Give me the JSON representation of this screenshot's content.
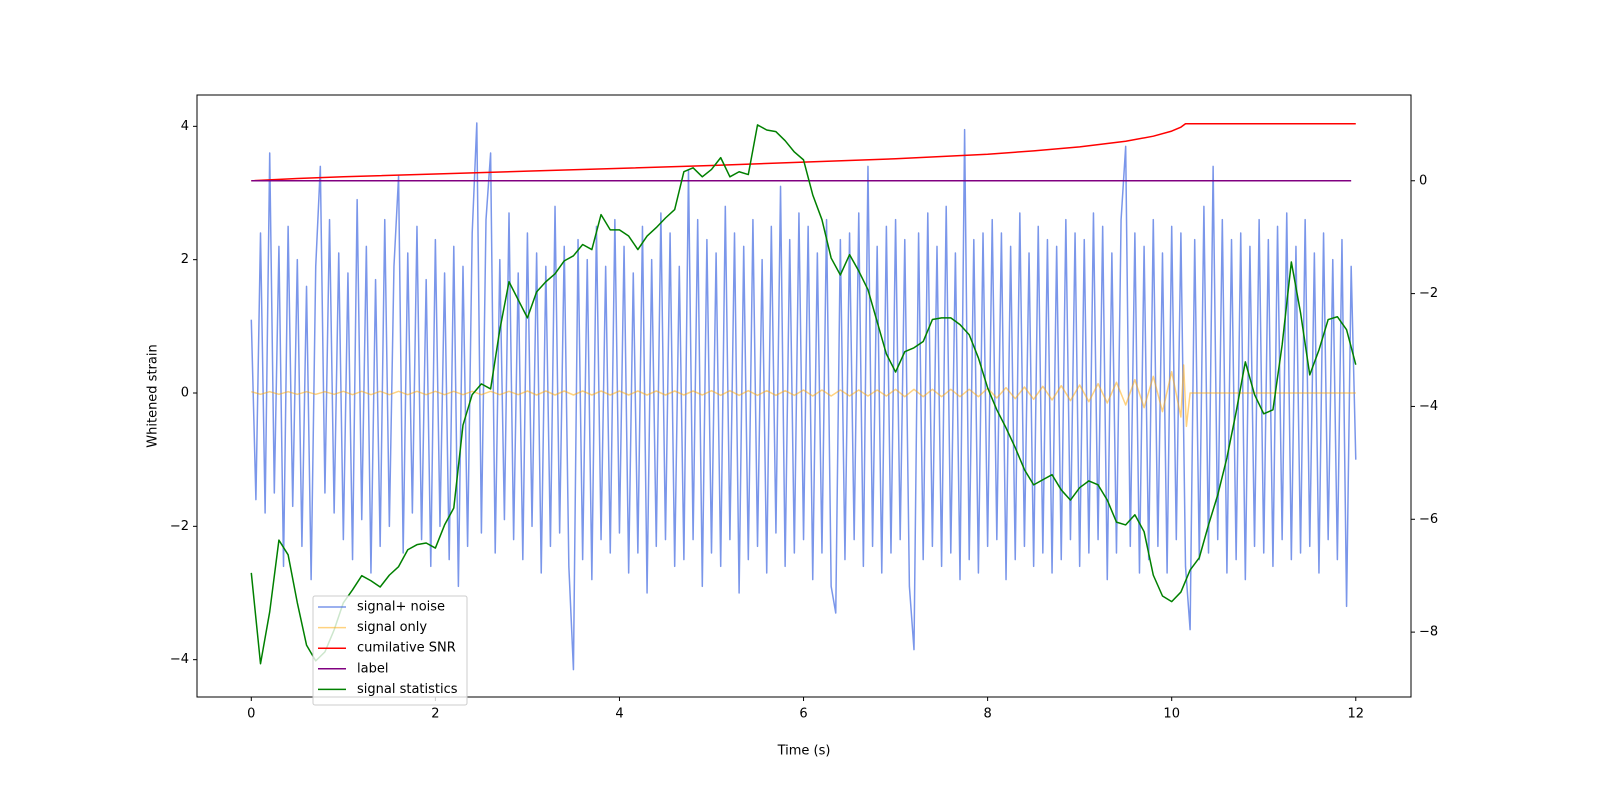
{
  "chart_data": {
    "type": "line",
    "xlabel": "Time (s)",
    "ylabel": "Whitened strain",
    "xlim": [
      -0.59,
      12.6
    ],
    "ylim": [
      -4.56,
      4.47
    ],
    "y2lim": [
      -9.15,
      1.52
    ],
    "xticks": [
      0,
      2,
      4,
      6,
      8,
      10,
      12
    ],
    "yticks": [
      {
        "value": -4,
        "label": "−4"
      },
      {
        "value": -2,
        "label": "−2"
      },
      0,
      2,
      4
    ],
    "y2ticks": [
      {
        "value": -8,
        "label": "−8"
      },
      {
        "value": -6,
        "label": "−6"
      },
      {
        "value": -4,
        "label": "−4"
      },
      {
        "value": -2,
        "label": "−2"
      },
      0
    ],
    "legend": "lower left",
    "series": [
      {
        "name": "signal+ noise",
        "color": "#4169e1",
        "alpha": 0.7,
        "x": [
          0,
          0.05,
          0.1,
          0.15,
          0.2,
          0.25,
          0.3,
          0.35,
          0.4,
          0.45,
          0.5,
          0.55,
          0.6,
          0.65,
          0.7,
          0.75,
          0.8,
          0.85,
          0.9,
          0.95,
          1,
          1.05,
          1.1,
          1.15,
          1.2,
          1.25,
          1.3,
          1.35,
          1.4,
          1.45,
          1.5,
          1.55,
          1.6,
          1.65,
          1.7,
          1.75,
          1.8,
          1.85,
          1.9,
          1.95,
          2,
          2.05,
          2.1,
          2.15,
          2.2,
          2.25,
          2.3,
          2.35,
          2.4,
          2.45,
          2.5,
          2.55,
          2.6,
          2.65,
          2.7,
          2.75,
          2.8,
          2.85,
          2.9,
          2.95,
          3,
          3.05,
          3.1,
          3.15,
          3.2,
          3.25,
          3.3,
          3.35,
          3.4,
          3.45,
          3.5,
          3.55,
          3.6,
          3.65,
          3.7,
          3.75,
          3.8,
          3.85,
          3.9,
          3.95,
          4,
          4.05,
          4.1,
          4.15,
          4.2,
          4.25,
          4.3,
          4.35,
          4.4,
          4.45,
          4.5,
          4.55,
          4.6,
          4.65,
          4.7,
          4.75,
          4.8,
          4.85,
          4.9,
          4.95,
          5,
          5.05,
          5.1,
          5.15,
          5.2,
          5.25,
          5.3,
          5.35,
          5.4,
          5.45,
          5.5,
          5.55,
          5.6,
          5.65,
          5.7,
          5.75,
          5.8,
          5.85,
          5.9,
          5.95,
          6,
          6.05,
          6.1,
          6.15,
          6.2,
          6.25,
          6.3,
          6.35,
          6.4,
          6.45,
          6.5,
          6.55,
          6.6,
          6.65,
          6.7,
          6.75,
          6.8,
          6.85,
          6.9,
          6.95,
          7,
          7.05,
          7.1,
          7.15,
          7.2,
          7.25,
          7.3,
          7.35,
          7.4,
          7.45,
          7.5,
          7.55,
          7.6,
          7.65,
          7.7,
          7.75,
          7.8,
          7.85,
          7.9,
          7.95,
          8,
          8.05,
          8.1,
          8.15,
          8.2,
          8.25,
          8.3,
          8.35,
          8.4,
          8.45,
          8.5,
          8.55,
          8.6,
          8.65,
          8.7,
          8.75,
          8.8,
          8.85,
          8.9,
          8.95,
          9,
          9.05,
          9.1,
          9.15,
          9.2,
          9.25,
          9.3,
          9.35,
          9.4,
          9.45,
          9.5,
          9.55,
          9.6,
          9.65,
          9.7,
          9.75,
          9.8,
          9.85,
          9.9,
          9.95,
          10,
          10.05,
          10.1,
          10.15,
          10.2,
          10.25,
          10.3,
          10.35,
          10.4,
          10.45,
          10.5,
          10.55,
          10.6,
          10.65,
          10.7,
          10.75,
          10.8,
          10.85,
          10.9,
          10.95,
          11,
          11.05,
          11.1,
          11.15,
          11.2,
          11.25,
          11.3,
          11.35,
          11.4,
          11.45,
          11.5,
          11.55,
          11.6,
          11.65,
          11.7,
          11.75,
          11.8,
          11.85,
          11.9,
          11.95,
          12
        ],
        "values": [
          1.1,
          -1.6,
          2.4,
          -1.8,
          3.6,
          -1.5,
          2.2,
          -2.6,
          2.5,
          -1.7,
          2.0,
          -2.3,
          1.6,
          -2.8,
          1.9,
          3.4,
          -1.5,
          2.6,
          -1.8,
          2.1,
          -2.2,
          1.8,
          -2.5,
          2.9,
          -1.9,
          2.2,
          -2.7,
          1.7,
          -2.3,
          2.6,
          -2.0,
          1.9,
          3.25,
          -2.4,
          2.1,
          -1.8,
          2.5,
          -2.2,
          1.7,
          -2.6,
          2.3,
          -2.0,
          1.8,
          -2.5,
          2.2,
          -2.9,
          1.9,
          -2.3,
          2.4,
          4.05,
          -2.1,
          2.6,
          3.6,
          -2.4,
          2.0,
          -1.9,
          2.7,
          -2.2,
          1.8,
          -2.5,
          2.4,
          -2.0,
          2.1,
          -2.7,
          1.9,
          -2.3,
          2.8,
          -2.1,
          2.2,
          -2.6,
          -4.15,
          2.3,
          -2.5,
          2.0,
          -2.8,
          2.5,
          -2.2,
          1.9,
          -2.4,
          2.6,
          -2.1,
          2.2,
          -2.7,
          1.8,
          -2.4,
          2.5,
          -3.0,
          2.0,
          -2.3,
          2.7,
          -2.2,
          2.4,
          -2.6,
          1.9,
          -2.5,
          3.35,
          -2.2,
          2.6,
          -2.9,
          2.3,
          -2.4,
          2.1,
          -2.6,
          2.8,
          -2.2,
          2.4,
          -3.0,
          2.2,
          -2.5,
          2.6,
          -2.3,
          2.0,
          -2.7,
          2.5,
          -2.1,
          3.1,
          -2.6,
          2.3,
          -2.4,
          2.7,
          -2.2,
          2.5,
          -2.8,
          2.1,
          -2.4,
          2.6,
          -2.9,
          -3.3,
          2.3,
          -2.5,
          2.4,
          -2.2,
          2.7,
          -2.6,
          3.4,
          -2.3,
          2.2,
          -2.7,
          2.5,
          -2.4,
          2.6,
          -2.2,
          2.3,
          -2.9,
          -3.85,
          2.4,
          -2.5,
          2.7,
          -2.3,
          2.2,
          -2.6,
          2.8,
          -2.4,
          2.1,
          -2.8,
          3.95,
          -2.5,
          2.3,
          -2.7,
          2.4,
          -2.3,
          2.6,
          -2.2,
          2.4,
          -2.8,
          2.2,
          -2.5,
          2.7,
          -2.3,
          2.1,
          -2.6,
          2.5,
          -2.4,
          2.3,
          -2.7,
          2.2,
          -2.5,
          2.6,
          -2.2,
          2.4,
          -2.6,
          2.3,
          -2.4,
          2.7,
          -2.2,
          2.5,
          -2.8,
          2.1,
          -2.4,
          2.6,
          3.7,
          -2.3,
          2.4,
          -2.7,
          2.2,
          -2.5,
          2.6,
          -2.3,
          2.1,
          -2.7,
          2.5,
          -2.2,
          2.4,
          -2.6,
          -3.55,
          2.3,
          -2.5,
          2.8,
          -2.4,
          3.4,
          -2.2,
          2.6,
          -2.7,
          2.3,
          -2.5,
          2.4,
          -2.8,
          2.2,
          -2.3,
          2.6,
          -2.4,
          2.3,
          -2.6,
          2.5,
          -2.2,
          2.7,
          -2.5,
          2.2,
          -2.4,
          2.6,
          -2.3,
          2.1,
          -2.7,
          2.4,
          -2.2,
          2.0,
          -2.5,
          2.3,
          -3.2,
          1.9,
          -1.0
        ]
      },
      {
        "name": "signal only",
        "color": "#ffa500",
        "alpha": 0.5,
        "x": [
          0,
          0.1,
          0.2,
          0.3,
          0.4,
          0.5,
          0.6,
          0.7,
          0.8,
          0.9,
          1,
          1.1,
          1.2,
          1.3,
          1.4,
          1.5,
          1.6,
          1.7,
          1.8,
          1.9,
          2,
          2.1,
          2.2,
          2.3,
          2.4,
          2.5,
          2.6,
          2.7,
          2.8,
          2.9,
          3,
          3.1,
          3.2,
          3.3,
          3.4,
          3.5,
          3.6,
          3.7,
          3.8,
          3.9,
          4,
          4.1,
          4.2,
          4.3,
          4.4,
          4.5,
          4.6,
          4.7,
          4.8,
          4.9,
          5,
          5.1,
          5.2,
          5.3,
          5.4,
          5.5,
          5.6,
          5.7,
          5.8,
          5.9,
          6,
          6.1,
          6.2,
          6.3,
          6.4,
          6.5,
          6.6,
          6.7,
          6.8,
          6.9,
          7,
          7.1,
          7.2,
          7.3,
          7.4,
          7.5,
          7.6,
          7.7,
          7.8,
          7.9,
          8,
          8.1,
          8.2,
          8.3,
          8.4,
          8.5,
          8.6,
          8.7,
          8.8,
          8.9,
          9,
          9.1,
          9.2,
          9.3,
          9.4,
          9.5,
          9.6,
          9.7,
          9.8,
          9.9,
          10,
          10.1,
          10.13,
          10.16,
          10.2,
          12
        ],
        "values": [
          0.02,
          -0.02,
          0.02,
          -0.02,
          0.02,
          -0.02,
          0.02,
          -0.02,
          0.02,
          -0.02,
          0.025,
          -0.025,
          0.025,
          -0.025,
          0.025,
          -0.025,
          0.025,
          -0.025,
          0.025,
          -0.025,
          0.025,
          -0.025,
          0.025,
          -0.025,
          0.025,
          -0.025,
          0.025,
          -0.025,
          0.025,
          -0.025,
          0.03,
          -0.03,
          0.03,
          -0.03,
          0.03,
          -0.03,
          0.03,
          -0.03,
          0.03,
          -0.03,
          0.03,
          -0.03,
          0.03,
          -0.03,
          0.03,
          -0.03,
          0.03,
          -0.03,
          0.03,
          -0.03,
          0.035,
          -0.035,
          0.035,
          -0.035,
          0.035,
          -0.035,
          0.035,
          -0.035,
          0.035,
          -0.035,
          0.045,
          -0.045,
          0.045,
          -0.045,
          0.045,
          -0.045,
          0.045,
          -0.045,
          0.045,
          -0.045,
          0.055,
          -0.055,
          0.055,
          -0.055,
          0.055,
          -0.055,
          0.055,
          -0.055,
          0.055,
          -0.055,
          0.07,
          -0.075,
          0.08,
          -0.085,
          0.09,
          -0.095,
          0.1,
          -0.105,
          0.11,
          -0.115,
          0.12,
          -0.13,
          0.14,
          -0.15,
          0.16,
          -0.18,
          0.2,
          -0.22,
          0.25,
          -0.28,
          0.32,
          -0.36,
          0.42,
          -0.5,
          0,
          0
        ]
      },
      {
        "name": "cumilative SNR",
        "color": "#ff0000",
        "axis": "y2",
        "x": [
          0,
          0.5,
          1,
          2,
          3,
          4,
          5,
          6,
          7,
          8,
          8.5,
          9,
          9.5,
          9.8,
          10,
          10.1,
          10.15,
          12
        ],
        "values": [
          0,
          0.04,
          0.07,
          0.12,
          0.17,
          0.22,
          0.27,
          0.33,
          0.39,
          0.47,
          0.53,
          0.6,
          0.7,
          0.79,
          0.88,
          0.95,
          1.01,
          1.01
        ]
      },
      {
        "name": "label",
        "color": "#800080",
        "axis": "y2",
        "x": [
          0,
          11.95
        ],
        "values": [
          0,
          0
        ]
      },
      {
        "name": "signal statistics",
        "color": "#008000",
        "axis": "y2",
        "x": [
          0,
          0.1,
          0.2,
          0.3,
          0.4,
          0.5,
          0.6,
          0.7,
          0.8,
          0.9,
          1,
          1.1,
          1.2,
          1.3,
          1.4,
          1.5,
          1.6,
          1.7,
          1.8,
          1.9,
          2,
          2.1,
          2.2,
          2.3,
          2.4,
          2.5,
          2.6,
          2.7,
          2.8,
          2.9,
          3,
          3.1,
          3.2,
          3.3,
          3.4,
          3.5,
          3.6,
          3.7,
          3.8,
          3.9,
          4,
          4.1,
          4.2,
          4.3,
          4.4,
          4.5,
          4.6,
          4.7,
          4.8,
          4.9,
          5,
          5.1,
          5.2,
          5.3,
          5.4,
          5.5,
          5.6,
          5.7,
          5.8,
          5.9,
          6,
          6.1,
          6.2,
          6.3,
          6.4,
          6.5,
          6.6,
          6.7,
          6.8,
          6.9,
          7,
          7.1,
          7.2,
          7.3,
          7.4,
          7.5,
          7.6,
          7.7,
          7.8,
          7.9,
          8,
          8.1,
          8.2,
          8.3,
          8.4,
          8.5,
          8.6,
          8.7,
          8.8,
          8.9,
          9,
          9.1,
          9.2,
          9.3,
          9.4,
          9.5,
          9.6,
          9.7,
          9.8,
          9.9,
          10,
          10.1,
          10.2,
          10.3,
          10.4,
          10.5,
          10.6,
          10.7,
          10.8,
          10.9,
          11,
          11.1,
          11.2,
          11.3,
          11.4,
          11.5,
          11.6,
          11.7,
          11.8,
          11.9,
          12
        ],
        "values": [
          -6.95,
          -8.56,
          -7.64,
          -6.37,
          -6.63,
          -7.48,
          -8.23,
          -8.51,
          -8.35,
          -7.96,
          -7.48,
          -7.25,
          -7.0,
          -7.09,
          -7.2,
          -6.99,
          -6.84,
          -6.54,
          -6.45,
          -6.42,
          -6.51,
          -6.1,
          -5.8,
          -4.33,
          -3.79,
          -3.6,
          -3.69,
          -2.64,
          -1.79,
          -2.11,
          -2.43,
          -1.97,
          -1.79,
          -1.65,
          -1.42,
          -1.33,
          -1.13,
          -1.22,
          -0.6,
          -0.87,
          -0.87,
          -0.98,
          -1.22,
          -0.98,
          -0.83,
          -0.66,
          -0.51,
          0.16,
          0.23,
          0.07,
          0.2,
          0.41,
          0.07,
          0.16,
          0.11,
          0.99,
          0.9,
          0.87,
          0.71,
          0.51,
          0.37,
          -0.25,
          -0.69,
          -1.37,
          -1.67,
          -1.31,
          -1.6,
          -1.93,
          -2.5,
          -3.07,
          -3.39,
          -3.03,
          -2.96,
          -2.85,
          -2.46,
          -2.43,
          -2.43,
          -2.55,
          -2.73,
          -3.14,
          -3.67,
          -4.06,
          -4.38,
          -4.73,
          -5.12,
          -5.39,
          -5.3,
          -5.21,
          -5.48,
          -5.66,
          -5.44,
          -5.32,
          -5.39,
          -5.66,
          -6.05,
          -6.1,
          -5.92,
          -6.22,
          -6.99,
          -7.36,
          -7.46,
          -7.29,
          -6.9,
          -6.68,
          -6.1,
          -5.57,
          -4.91,
          -4.1,
          -3.21,
          -3.79,
          -4.13,
          -4.06,
          -2.91,
          -1.44,
          -2.34,
          -3.44,
          -3.0,
          -2.46,
          -2.41,
          -2.64,
          -3.26
        ]
      }
    ]
  }
}
